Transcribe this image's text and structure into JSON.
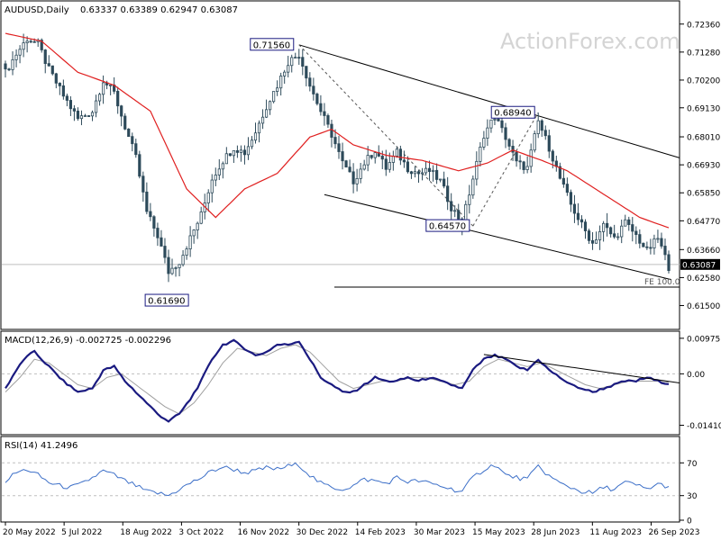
{
  "colors": {
    "candle": "#2d4a5a",
    "sma": "#e02020",
    "macd": "#1a1a80",
    "signal": "#a0a0a0",
    "rsi": "#3c6fc8",
    "trend": "#000000",
    "dashed": "#555555",
    "box_border": "#1a1a80",
    "grid": "#bfbfbf",
    "panel_border": "#000000",
    "watermark": "#d4d4d4"
  },
  "header": {
    "symbol": "AUDUSD,Daily",
    "ohlc": "0.63337 0.63389 0.62947 0.63087",
    "watermark": "ActionForex.com"
  },
  "current_price_label": "0.63087",
  "chart_data": [
    {
      "type": "candlestick",
      "name": "price",
      "ylim": [
        0.6065,
        0.7315
      ],
      "y_ticks": [
        {
          "value": 0.7236,
          "label": "0.72360"
        },
        {
          "value": 0.7128,
          "label": "0.71280"
        },
        {
          "value": 0.702,
          "label": "0.70200"
        },
        {
          "value": 0.6913,
          "label": "0.69130"
        },
        {
          "value": 0.6801,
          "label": "0.68010"
        },
        {
          "value": 0.6693,
          "label": "0.66930"
        },
        {
          "value": 0.6585,
          "label": "0.65850"
        },
        {
          "value": 0.6477,
          "label": "0.64770"
        },
        {
          "value": 0.6366,
          "label": "0.63660"
        },
        {
          "value": 0.6258,
          "label": "0.62580"
        },
        {
          "value": 0.615,
          "label": "0.61500"
        }
      ],
      "x_labels": [
        "20 May 2022",
        "5 Jul 2022",
        "18 Aug 2022",
        "3 Oct 2022",
        "16 Nov 2022",
        "30 Dec 2022",
        "14 Feb 2023",
        "30 Mar 2023",
        "15 May 2023",
        "28 Jun 2023",
        "11 Aug 2023",
        "26 Sep 2023"
      ],
      "close_anchors": [
        [
          0,
          0.705
        ],
        [
          3,
          0.712
        ],
        [
          6,
          0.718
        ],
        [
          9,
          0.716
        ],
        [
          12,
          0.706
        ],
        [
          16,
          0.696
        ],
        [
          20,
          0.687
        ],
        [
          24,
          0.69
        ],
        [
          27,
          0.702
        ],
        [
          30,
          0.697
        ],
        [
          33,
          0.684
        ],
        [
          36,
          0.672
        ],
        [
          39,
          0.651
        ],
        [
          42,
          0.642
        ],
        [
          45,
          0.628
        ],
        [
          48,
          0.632
        ],
        [
          51,
          0.641
        ],
        [
          54,
          0.65
        ],
        [
          57,
          0.664
        ],
        [
          60,
          0.671
        ],
        [
          63,
          0.676
        ],
        [
          66,
          0.674
        ],
        [
          69,
          0.682
        ],
        [
          72,
          0.692
        ],
        [
          75,
          0.7
        ],
        [
          78,
          0.709
        ],
        [
          81,
          0.712
        ],
        [
          84,
          0.7
        ],
        [
          87,
          0.69
        ],
        [
          90,
          0.681
        ],
        [
          93,
          0.67
        ],
        [
          96,
          0.663
        ],
        [
          99,
          0.67
        ],
        [
          102,
          0.675
        ],
        [
          105,
          0.668
        ],
        [
          108,
          0.674
        ],
        [
          111,
          0.668
        ],
        [
          114,
          0.666
        ],
        [
          117,
          0.667
        ],
        [
          120,
          0.663
        ],
        [
          123,
          0.653
        ],
        [
          126,
          0.647
        ],
        [
          129,
          0.664
        ],
        [
          132,
          0.681
        ],
        [
          135,
          0.688
        ],
        [
          138,
          0.68
        ],
        [
          141,
          0.67
        ],
        [
          144,
          0.668
        ],
        [
          147,
          0.686
        ],
        [
          150,
          0.676
        ],
        [
          153,
          0.664
        ],
        [
          156,
          0.654
        ],
        [
          159,
          0.646
        ],
        [
          162,
          0.639
        ],
        [
          165,
          0.646
        ],
        [
          168,
          0.641
        ],
        [
          171,
          0.647
        ],
        [
          174,
          0.642
        ],
        [
          177,
          0.636
        ],
        [
          180,
          0.641
        ],
        [
          183,
          0.63
        ]
      ],
      "sma_anchors": [
        [
          0,
          0.72
        ],
        [
          10,
          0.717
        ],
        [
          20,
          0.705
        ],
        [
          30,
          0.7
        ],
        [
          40,
          0.69
        ],
        [
          50,
          0.66
        ],
        [
          58,
          0.649
        ],
        [
          66,
          0.66
        ],
        [
          75,
          0.666
        ],
        [
          84,
          0.68
        ],
        [
          90,
          0.683
        ],
        [
          96,
          0.677
        ],
        [
          105,
          0.673
        ],
        [
          115,
          0.671
        ],
        [
          125,
          0.667
        ],
        [
          133,
          0.67
        ],
        [
          140,
          0.675
        ],
        [
          148,
          0.671
        ],
        [
          155,
          0.667
        ],
        [
          165,
          0.658
        ],
        [
          175,
          0.649
        ],
        [
          183,
          0.645
        ]
      ],
      "levels": {
        "horizontal_support": 0.6169,
        "current_price": 0.63087
      },
      "annotations": [
        {
          "label": "0.71560",
          "value": 0.7156
        },
        {
          "label": "0.61690",
          "value": 0.6169
        },
        {
          "label": "0.64570",
          "value": 0.6457
        },
        {
          "label": "0.68940",
          "value": 0.6894
        },
        {
          "label": "FE 100.0"
        }
      ],
      "channel": {
        "upper": [
          [
            0.7156,
            0.672
          ]
        ],
        "lower": [
          [
            0.6578,
            0.625
          ]
        ]
      }
    },
    {
      "type": "line",
      "name": "macd",
      "title": "MACD(12,26,9) -0.002725 -0.002296",
      "ylim": [
        -0.0162,
        0.0112
      ],
      "y_ticks": [
        {
          "value": 0.009751,
          "label": "0.009751"
        },
        {
          "value": 0.0,
          "label": "0.00"
        },
        {
          "value": -0.014107,
          "label": "-0.014107"
        }
      ],
      "macd_anchors": [
        [
          0,
          -0.004
        ],
        [
          3,
          0.001
        ],
        [
          6,
          0.005
        ],
        [
          8,
          0.006
        ],
        [
          12,
          0.002
        ],
        [
          16,
          -0.002
        ],
        [
          20,
          -0.005
        ],
        [
          24,
          -0.004
        ],
        [
          27,
          0.001
        ],
        [
          30,
          0.002
        ],
        [
          33,
          -0.002
        ],
        [
          36,
          -0.005
        ],
        [
          39,
          -0.008
        ],
        [
          42,
          -0.011
        ],
        [
          45,
          -0.013
        ],
        [
          48,
          -0.011
        ],
        [
          51,
          -0.007
        ],
        [
          54,
          -0.002
        ],
        [
          57,
          0.004
        ],
        [
          60,
          0.008
        ],
        [
          63,
          0.009
        ],
        [
          66,
          0.007
        ],
        [
          69,
          0.005
        ],
        [
          72,
          0.006
        ],
        [
          75,
          0.008
        ],
        [
          78,
          0.008
        ],
        [
          81,
          0.009
        ],
        [
          84,
          0.004
        ],
        [
          87,
          -0.001
        ],
        [
          90,
          -0.003
        ],
        [
          93,
          -0.005
        ],
        [
          96,
          -0.005
        ],
        [
          99,
          -0.003
        ],
        [
          102,
          -0.001
        ],
        [
          105,
          -0.002
        ],
        [
          108,
          -0.002
        ],
        [
          111,
          -0.001
        ],
        [
          114,
          -0.002
        ],
        [
          117,
          -0.001
        ],
        [
          120,
          -0.002
        ],
        [
          123,
          -0.003
        ],
        [
          126,
          -0.004
        ],
        [
          129,
          0.001
        ],
        [
          132,
          0.004
        ],
        [
          135,
          0.005
        ],
        [
          138,
          0.004
        ],
        [
          141,
          0.002
        ],
        [
          144,
          0.001
        ],
        [
          147,
          0.004
        ],
        [
          150,
          0.001
        ],
        [
          153,
          -0.001
        ],
        [
          156,
          -0.003
        ],
        [
          159,
          -0.004
        ],
        [
          162,
          -0.005
        ],
        [
          165,
          -0.004
        ],
        [
          168,
          -0.003
        ],
        [
          171,
          -0.002
        ],
        [
          174,
          -0.002
        ],
        [
          177,
          -0.001
        ],
        [
          180,
          -0.002
        ],
        [
          183,
          -0.0027
        ]
      ],
      "signal_anchors": [
        [
          0,
          -0.005
        ],
        [
          4,
          -0.001
        ],
        [
          8,
          0.004
        ],
        [
          12,
          0.003
        ],
        [
          16,
          0.0
        ],
        [
          20,
          -0.003
        ],
        [
          24,
          -0.004
        ],
        [
          28,
          -0.001
        ],
        [
          32,
          0.0
        ],
        [
          36,
          -0.003
        ],
        [
          40,
          -0.006
        ],
        [
          44,
          -0.009
        ],
        [
          48,
          -0.011
        ],
        [
          52,
          -0.008
        ],
        [
          56,
          -0.003
        ],
        [
          60,
          0.003
        ],
        [
          64,
          0.007
        ],
        [
          68,
          0.006
        ],
        [
          72,
          0.005
        ],
        [
          76,
          0.007
        ],
        [
          80,
          0.008
        ],
        [
          84,
          0.006
        ],
        [
          88,
          0.002
        ],
        [
          92,
          -0.002
        ],
        [
          96,
          -0.004
        ],
        [
          100,
          -0.003
        ],
        [
          104,
          -0.002
        ],
        [
          108,
          -0.002
        ],
        [
          112,
          -0.001
        ],
        [
          116,
          -0.001
        ],
        [
          120,
          -0.002
        ],
        [
          124,
          -0.003
        ],
        [
          128,
          -0.002
        ],
        [
          132,
          0.002
        ],
        [
          136,
          0.004
        ],
        [
          140,
          0.003
        ],
        [
          144,
          0.002
        ],
        [
          148,
          0.003
        ],
        [
          152,
          0.001
        ],
        [
          156,
          -0.001
        ],
        [
          160,
          -0.003
        ],
        [
          164,
          -0.004
        ],
        [
          168,
          -0.003
        ],
        [
          172,
          -0.002
        ],
        [
          176,
          -0.002
        ],
        [
          180,
          -0.002
        ],
        [
          183,
          -0.0023
        ]
      ],
      "resistance_trendline": [
        [
          0.0053,
          -0.0025
        ]
      ]
    },
    {
      "type": "line",
      "name": "rsi",
      "title": "RSI(14) 41.2496",
      "ylim": [
        0,
        100
      ],
      "y_ticks": [
        {
          "value": 70,
          "label": "70"
        },
        {
          "value": 30,
          "label": "30"
        },
        {
          "value": 0,
          "label": "0"
        }
      ],
      "rsi_anchors": [
        [
          0,
          48
        ],
        [
          3,
          58
        ],
        [
          6,
          62
        ],
        [
          9,
          55
        ],
        [
          12,
          46
        ],
        [
          15,
          42
        ],
        [
          18,
          40
        ],
        [
          21,
          44
        ],
        [
          24,
          52
        ],
        [
          27,
          60
        ],
        [
          30,
          55
        ],
        [
          33,
          48
        ],
        [
          36,
          42
        ],
        [
          39,
          35
        ],
        [
          42,
          33
        ],
        [
          45,
          30
        ],
        [
          48,
          38
        ],
        [
          51,
          45
        ],
        [
          54,
          52
        ],
        [
          57,
          60
        ],
        [
          60,
          65
        ],
        [
          63,
          62
        ],
        [
          66,
          58
        ],
        [
          69,
          60
        ],
        [
          72,
          64
        ],
        [
          75,
          62
        ],
        [
          78,
          66
        ],
        [
          81,
          68
        ],
        [
          84,
          55
        ],
        [
          87,
          45
        ],
        [
          90,
          40
        ],
        [
          93,
          38
        ],
        [
          96,
          42
        ],
        [
          99,
          50
        ],
        [
          102,
          48
        ],
        [
          105,
          45
        ],
        [
          108,
          52
        ],
        [
          111,
          47
        ],
        [
          114,
          48
        ],
        [
          117,
          45
        ],
        [
          120,
          42
        ],
        [
          123,
          38
        ],
        [
          126,
          35
        ],
        [
          129,
          52
        ],
        [
          132,
          62
        ],
        [
          135,
          68
        ],
        [
          138,
          55
        ],
        [
          141,
          52
        ],
        [
          144,
          50
        ],
        [
          147,
          66
        ],
        [
          150,
          54
        ],
        [
          153,
          45
        ],
        [
          156,
          40
        ],
        [
          159,
          35
        ],
        [
          162,
          33
        ],
        [
          165,
          40
        ],
        [
          168,
          38
        ],
        [
          171,
          46
        ],
        [
          174,
          43
        ],
        [
          177,
          38
        ],
        [
          180,
          44
        ],
        [
          183,
          41.2
        ]
      ]
    }
  ]
}
